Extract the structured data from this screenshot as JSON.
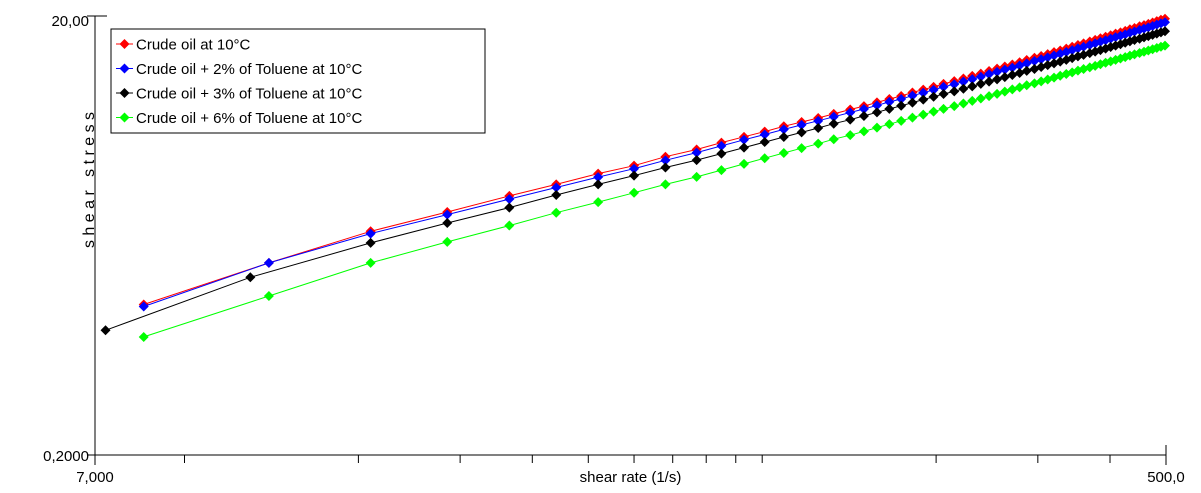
{
  "chart_data": {
    "type": "scatter",
    "xlabel": "shear rate (1/s)",
    "ylabel": "s h e a r   s t r e s s",
    "x_scale": "log",
    "y_scale": "log",
    "xlim": [
      7,
      500
    ],
    "ylim": [
      0.2,
      20
    ],
    "x_tick_labels": [
      "7,000",
      "500,0"
    ],
    "y_tick_labels": [
      "20,00",
      "0,2000"
    ],
    "x_minor_ticks": [
      10,
      20,
      30,
      40,
      50,
      60,
      70,
      80,
      90,
      100,
      200,
      300,
      400
    ],
    "legend_position": "top-left",
    "grid": false,
    "series": [
      {
        "name": "Crude oil at 10°C",
        "color": "#ff0000",
        "x": [
          8.5,
          14,
          21,
          28.5,
          36.5,
          44,
          52,
          60,
          68,
          77,
          85,
          93,
          101,
          109,
          117,
          125,
          133,
          142,
          150,
          158,
          166,
          174,
          182,
          190,
          198,
          206,
          215,
          223,
          231,
          239,
          247,
          255,
          263,
          271,
          279,
          287,
          296,
          304,
          312,
          320,
          328,
          336,
          344,
          352,
          360,
          369,
          377,
          385,
          393,
          401,
          409,
          417,
          425,
          433,
          441,
          450,
          458,
          466,
          474,
          482,
          490,
          498
        ],
        "y": [
          0.97,
          1.5,
          2.09,
          2.56,
          3.03,
          3.42,
          3.83,
          4.16,
          4.57,
          4.93,
          5.3,
          5.63,
          5.95,
          6.29,
          6.58,
          6.86,
          7.16,
          7.5,
          7.77,
          8.08,
          8.37,
          8.64,
          8.96,
          9.24,
          9.51,
          9.81,
          10.1,
          10.38,
          10.67,
          10.93,
          11.23,
          11.51,
          11.78,
          12.03,
          12.31,
          12.6,
          12.91,
          13.14,
          13.41,
          13.69,
          13.93,
          14.2,
          14.49,
          14.76,
          15.0,
          15.31,
          15.56,
          15.83,
          16.09,
          16.35,
          16.62,
          16.85,
          17.1,
          17.4,
          17.63,
          17.95,
          18.18,
          18.42,
          18.67,
          18.96,
          19.22,
          19.42
        ]
      },
      {
        "name": "Crude oil + 2% of Toluene at 10°C",
        "color": "#0000ff",
        "x": [
          8.5,
          14,
          21,
          28.5,
          36.5,
          44,
          52,
          60,
          68,
          77,
          85,
          93,
          101,
          109,
          117,
          125,
          133,
          142,
          150,
          158,
          166,
          174,
          182,
          190,
          198,
          206,
          215,
          223,
          231,
          239,
          247,
          255,
          263,
          271,
          279,
          287,
          296,
          304,
          312,
          320,
          328,
          336,
          344,
          352,
          360,
          369,
          377,
          385,
          393,
          401,
          409,
          417,
          425,
          433,
          441,
          450,
          458,
          466,
          474,
          482,
          490,
          498
        ],
        "y": [
          0.95,
          1.5,
          2.04,
          2.49,
          2.93,
          3.31,
          3.69,
          4.03,
          4.4,
          4.77,
          5.12,
          5.46,
          5.77,
          6.09,
          6.38,
          6.66,
          6.95,
          7.27,
          7.54,
          7.83,
          8.12,
          8.37,
          8.67,
          8.94,
          9.21,
          9.51,
          9.78,
          10.05,
          10.32,
          10.58,
          10.87,
          11.13,
          11.39,
          11.63,
          11.9,
          12.17,
          12.47,
          12.7,
          12.96,
          13.22,
          13.46,
          13.71,
          13.99,
          14.25,
          14.48,
          14.76,
          15.01,
          15.26,
          15.51,
          15.77,
          16.02,
          16.25,
          16.49,
          16.78,
          17.0,
          17.3,
          17.53,
          17.76,
          18.0,
          18.27,
          18.52,
          18.72
        ]
      },
      {
        "name": "Crude oil + 3% of Toluene at 10°C",
        "color": "#000000",
        "x": [
          7.3,
          13,
          21,
          28.5,
          36.5,
          44,
          52,
          60,
          68,
          77,
          85,
          93,
          101,
          109,
          117,
          125,
          133,
          142,
          150,
          158,
          166,
          174,
          182,
          190,
          198,
          206,
          215,
          223,
          231,
          239,
          247,
          255,
          263,
          271,
          279,
          287,
          296,
          304,
          312,
          320,
          328,
          336,
          344,
          352,
          360,
          369,
          377,
          385,
          393,
          401,
          409,
          417,
          425,
          433,
          441,
          450,
          458,
          466,
          474,
          482,
          490,
          498
        ],
        "y": [
          0.74,
          1.29,
          1.85,
          2.28,
          2.68,
          3.06,
          3.42,
          3.75,
          4.08,
          4.41,
          4.72,
          5.03,
          5.33,
          5.62,
          5.9,
          6.18,
          6.46,
          6.74,
          7.01,
          7.28,
          7.55,
          7.8,
          8.06,
          8.32,
          8.57,
          8.82,
          9.07,
          9.32,
          9.56,
          9.81,
          10.05,
          10.29,
          10.53,
          10.77,
          11.0,
          11.24,
          11.47,
          11.71,
          11.94,
          12.17,
          12.4,
          12.63,
          12.86,
          13.09,
          13.31,
          13.54,
          13.77,
          13.99,
          14.21,
          14.44,
          14.66,
          14.88,
          15.1,
          15.32,
          15.54,
          15.76,
          15.98,
          16.19,
          16.41,
          16.63,
          16.84,
          17.04
        ]
      },
      {
        "name": "Crude oil + 6% of Toluene at 10°C",
        "color": "#00ff00",
        "x": [
          8.5,
          14,
          21,
          28.5,
          36.5,
          44,
          52,
          60,
          68,
          77,
          85,
          93,
          101,
          109,
          117,
          125,
          133,
          142,
          150,
          158,
          166,
          174,
          182,
          190,
          198,
          206,
          215,
          223,
          231,
          239,
          247,
          255,
          263,
          271,
          279,
          287,
          296,
          304,
          312,
          320,
          328,
          336,
          344,
          352,
          360,
          369,
          377,
          385,
          393,
          401,
          409,
          417,
          425,
          433,
          441,
          450,
          458,
          466,
          474,
          482,
          490,
          498
        ],
        "y": [
          0.69,
          1.06,
          1.5,
          1.87,
          2.22,
          2.54,
          2.84,
          3.13,
          3.42,
          3.7,
          3.97,
          4.24,
          4.5,
          4.75,
          5.0,
          5.24,
          5.49,
          5.73,
          5.96,
          6.2,
          6.43,
          6.66,
          6.89,
          7.11,
          7.33,
          7.55,
          7.77,
          7.99,
          8.21,
          8.42,
          8.63,
          8.84,
          9.05,
          9.26,
          9.46,
          9.67,
          9.87,
          10.08,
          10.28,
          10.48,
          10.68,
          10.88,
          11.07,
          11.27,
          11.47,
          11.66,
          11.85,
          12.05,
          12.24,
          12.43,
          12.62,
          12.81,
          13.0,
          13.19,
          13.37,
          13.56,
          13.74,
          13.93,
          14.11,
          14.29,
          14.48,
          14.66
        ]
      }
    ]
  }
}
